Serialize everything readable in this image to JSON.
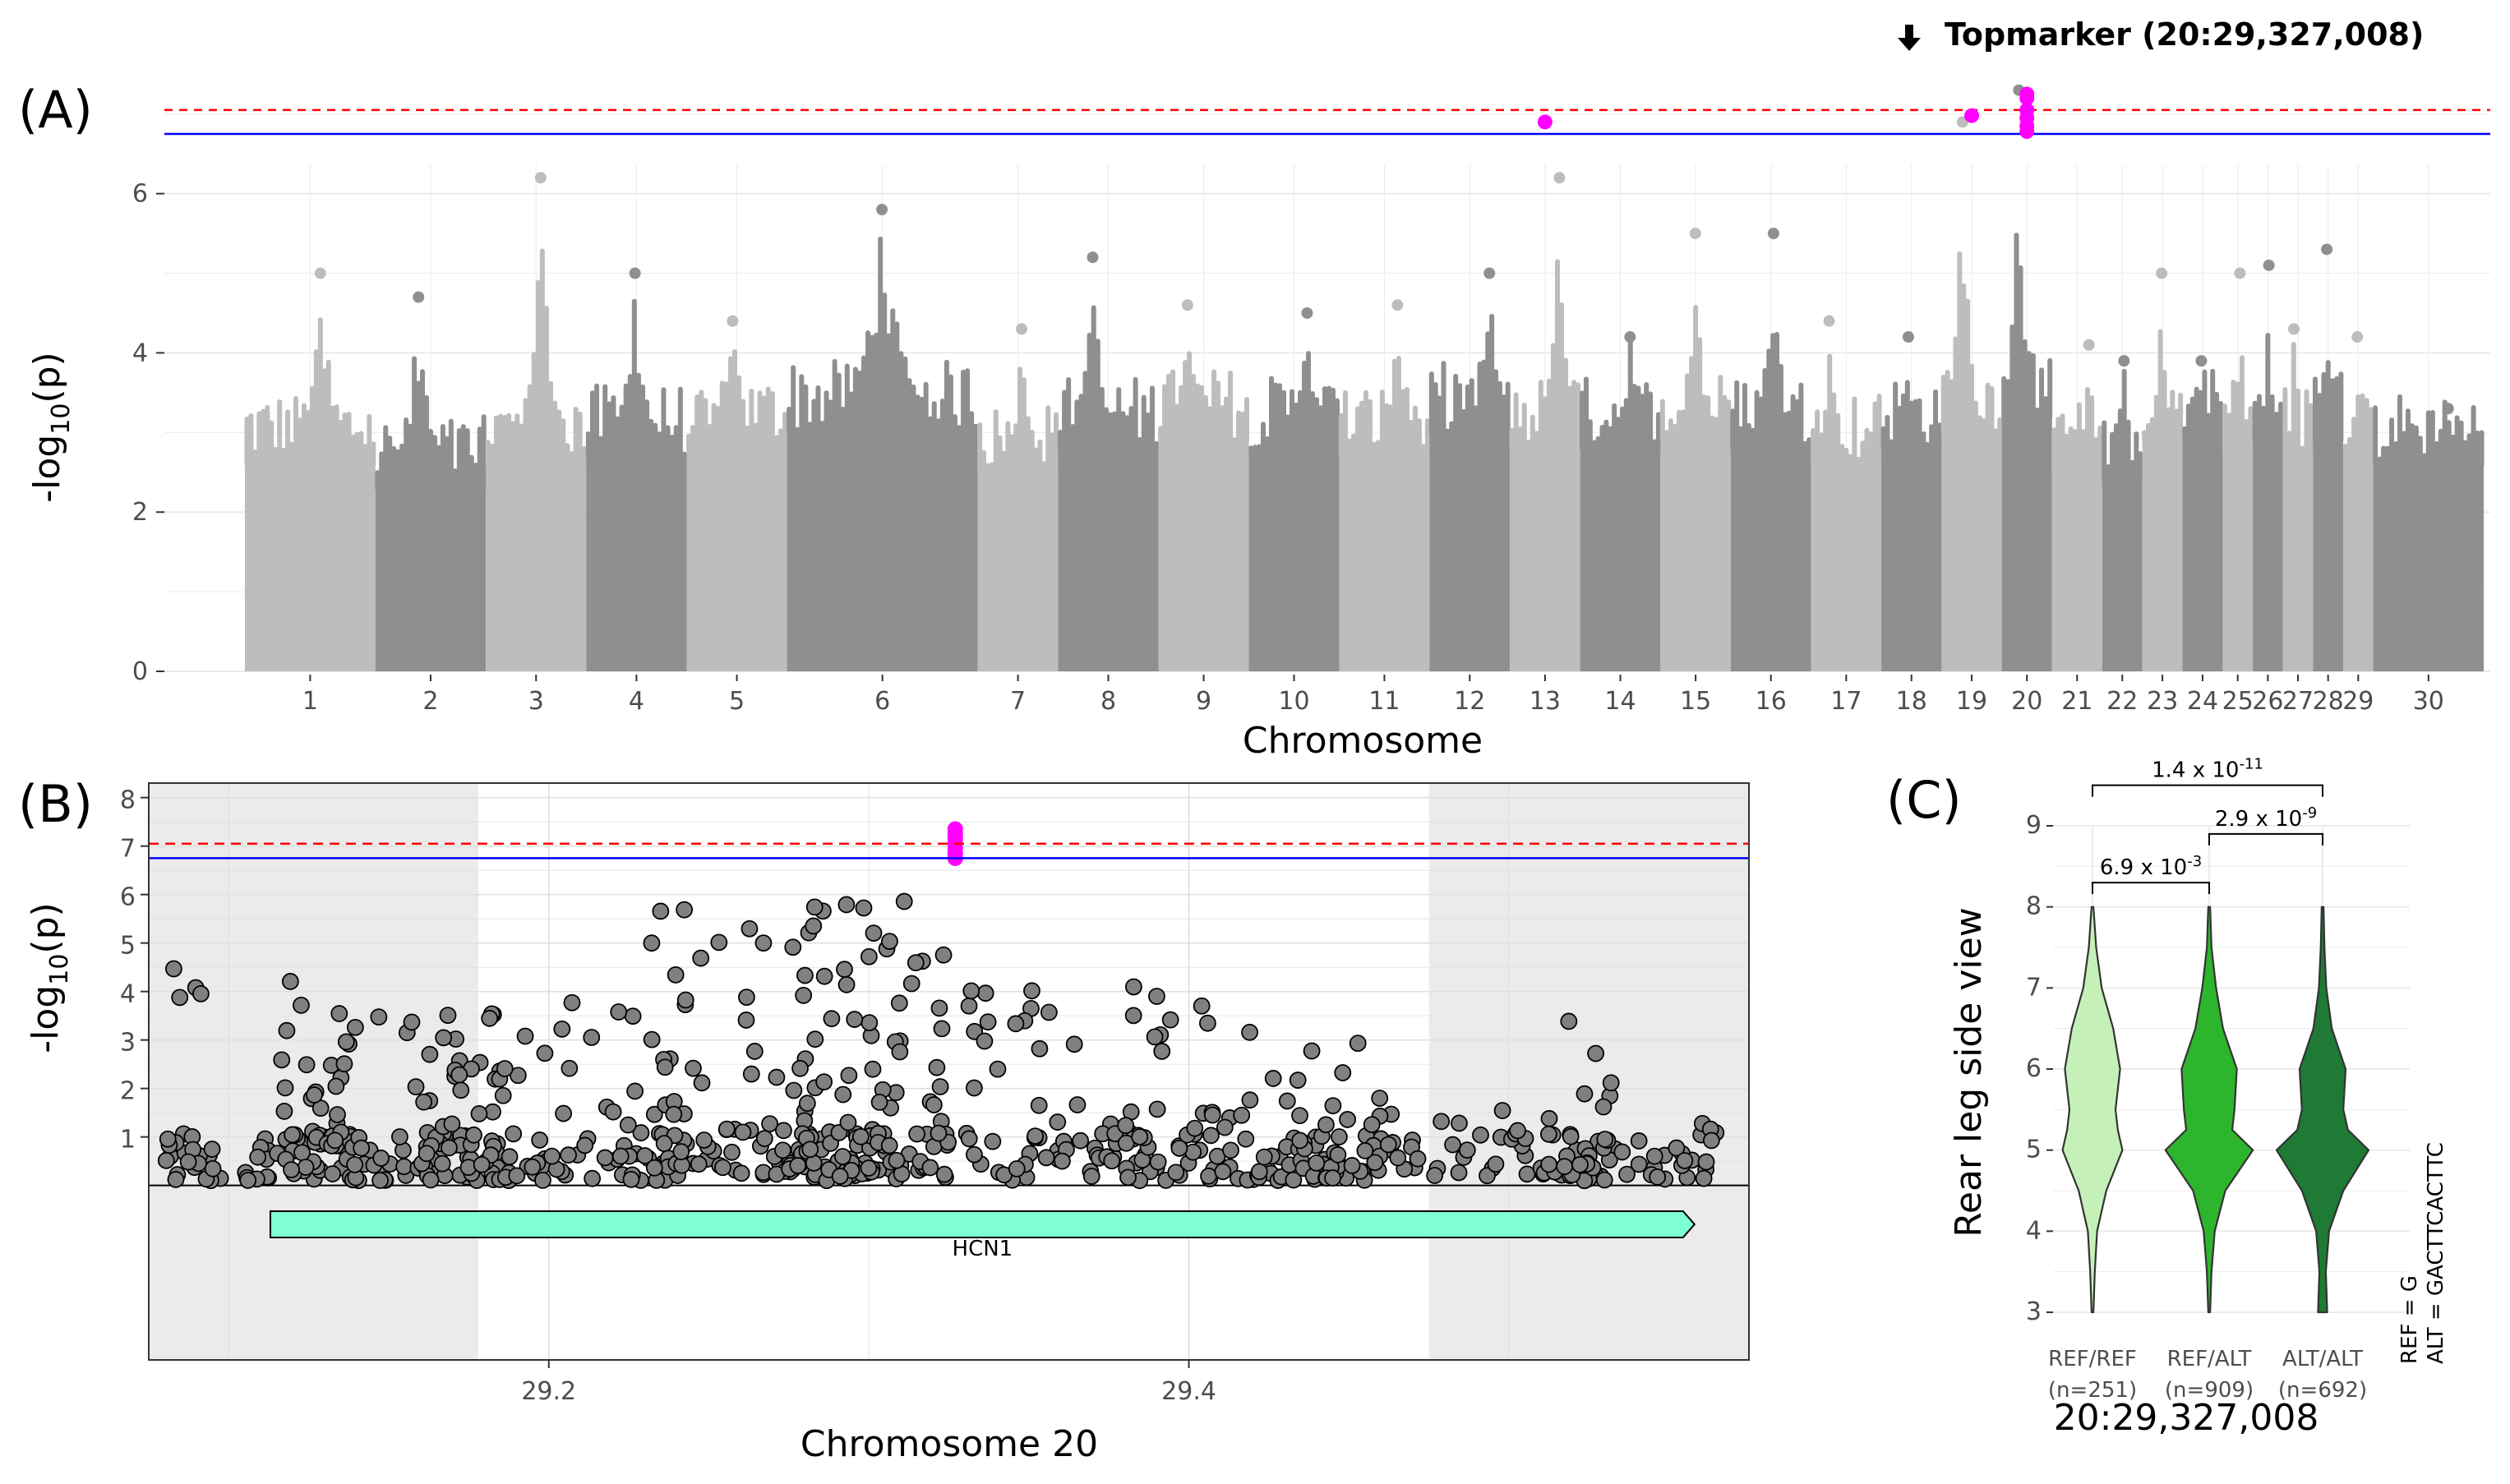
{
  "panel_labels": {
    "a": "(A)",
    "b": "(B)",
    "c": "(C)"
  },
  "chart_data": [
    {
      "type": "scatter",
      "name": "manhattan",
      "xlabel": "Chromosome",
      "ylabel_main": "-log",
      "ylabel_sub": "10",
      "ylabel_tail": "(p)",
      "ylim": [
        0,
        7.4
      ],
      "yticks": [
        0,
        2,
        4,
        6
      ],
      "chromosomes": [
        "1",
        "2",
        "3",
        "4",
        "5",
        "6",
        "7",
        "8",
        "9",
        "10",
        "11",
        "12",
        "13",
        "14",
        "15",
        "16",
        "17",
        "18",
        "19",
        "20",
        "21",
        "22",
        "23",
        "24",
        "25",
        "26",
        "27",
        "28",
        "29",
        "30"
      ],
      "chr_width": [
        1.3,
        1.1,
        1.0,
        1.0,
        1.0,
        1.9,
        0.8,
        1.0,
        0.9,
        0.9,
        0.9,
        0.8,
        0.7,
        0.8,
        0.7,
        0.8,
        0.7,
        0.6,
        0.6,
        0.5,
        0.5,
        0.4,
        0.4,
        0.4,
        0.3,
        0.3,
        0.3,
        0.3,
        0.3,
        1.1
      ],
      "chr_peak": [
        5.0,
        4.7,
        6.2,
        5.0,
        4.4,
        5.8,
        4.3,
        5.2,
        4.6,
        4.5,
        4.6,
        5.0,
        6.2,
        4.2,
        5.5,
        5.5,
        4.4,
        4.2,
        6.9,
        7.3,
        4.1,
        3.9,
        5.0,
        3.9,
        5.0,
        5.1,
        4.3,
        5.3,
        4.2,
        3.3
      ],
      "chr_base": [
        2.6,
        2.3,
        2.6,
        2.7,
        2.8,
        3.0,
        2.5,
        2.8,
        2.9,
        2.8,
        2.7,
        3.0,
        2.8,
        2.8,
        2.9,
        2.8,
        2.6,
        2.8,
        3.0,
        3.2,
        2.5,
        2.4,
        2.9,
        3.0,
        2.8,
        2.9,
        2.7,
        2.9,
        2.8,
        2.6
      ],
      "highlight_points": [
        {
          "chr": "13",
          "y": 6.9
        },
        {
          "chr": "19",
          "y": 6.98
        },
        {
          "chr": "20",
          "y": 7.25
        },
        {
          "chr": "20",
          "y": 7.2
        },
        {
          "chr": "20",
          "y": 7.05
        },
        {
          "chr": "20",
          "y": 6.95
        },
        {
          "chr": "20",
          "y": 6.85
        },
        {
          "chr": "20",
          "y": 6.78
        }
      ],
      "threshold_red": 7.05,
      "threshold_blue": 6.75,
      "annotation": "Topmarker (20:29,327,008)",
      "colors": {
        "light": "#bdbdbd",
        "dark": "#8f8f8f",
        "highlight": "#ff00ff",
        "red_line": "#ff0000",
        "blue_line": "#0000ff"
      }
    },
    {
      "type": "scatter",
      "name": "regional",
      "xlabel": "Chromosome 20",
      "ylabel_main": "-log",
      "ylabel_sub": "10",
      "ylabel_tail": "(p)",
      "xlim": [
        29.075,
        29.575
      ],
      "ylim": [
        -3.6,
        8.3
      ],
      "xticks": [
        29.2,
        29.4
      ],
      "xtick_labels": [
        "29.2",
        "29.4"
      ],
      "yticks": [
        1,
        2,
        3,
        4,
        5,
        6,
        7,
        8
      ],
      "shaded_regions": [
        [
          29.075,
          29.178
        ],
        [
          29.475,
          29.575
        ]
      ],
      "gene": {
        "name": "HCN1",
        "start": 29.113,
        "end": 29.558
      },
      "top_marker_x": 29.327,
      "highlight_y": [
        7.35,
        7.25,
        7.15,
        7.05,
        6.95,
        6.85,
        6.75
      ],
      "threshold_red": 7.05,
      "threshold_blue": 6.75,
      "colors": {
        "point": "#808080",
        "highlight": "#ff00ff",
        "gene_fill": "#7fffd4"
      }
    },
    {
      "type": "violin",
      "name": "genotype_phenotype",
      "ylabel": "Rear leg side view",
      "xlabel": "20:29,327,008",
      "ylim": [
        3,
        9
      ],
      "yticks": [
        3,
        4,
        5,
        6,
        7,
        8,
        9
      ],
      "categories": [
        "REF/REF",
        "REF/ALT",
        "ALT/ALT"
      ],
      "counts": [
        "(n=251)",
        "(n=909)",
        "(n=692)"
      ],
      "fills": [
        "#c5f1b8",
        "#2db52d",
        "#1e7a35"
      ],
      "density": [
        {
          "3": 0.02,
          "3.5": 0.05,
          "4": 0.1,
          "4.5": 0.3,
          "5": 0.65,
          "5.25": 0.55,
          "5.5": 0.5,
          "6": 0.6,
          "6.5": 0.45,
          "7": 0.2,
          "7.5": 0.08,
          "8": 0.02
        },
        {
          "3": 0.02,
          "3.5": 0.05,
          "4": 0.12,
          "4.5": 0.35,
          "5": 0.95,
          "5.25": 0.5,
          "5.5": 0.55,
          "6": 0.6,
          "6.5": 0.3,
          "7": 0.15,
          "7.5": 0.05,
          "8": 0.02
        },
        {
          "3": 0.1,
          "3.5": 0.07,
          "4": 0.14,
          "4.5": 0.45,
          "5": 1.0,
          "5.25": 0.55,
          "5.5": 0.45,
          "6": 0.5,
          "6.5": 0.2,
          "7": 0.08,
          "7.5": 0.04,
          "8": 0.02
        }
      ],
      "comparisons": [
        {
          "pair": [
            0,
            1
          ],
          "base": "6.9 x 10",
          "exp": "-3",
          "y": 8.3
        },
        {
          "pair": [
            1,
            2
          ],
          "base": "2.9 x 10",
          "exp": "-9",
          "y": 8.9
        },
        {
          "pair": [
            0,
            2
          ],
          "base": "1.4 x 10",
          "exp": "-11",
          "y": 9.5
        }
      ],
      "allele_ref": "REF = G",
      "allele_alt": "ALT = GACTTCACTTC"
    }
  ]
}
